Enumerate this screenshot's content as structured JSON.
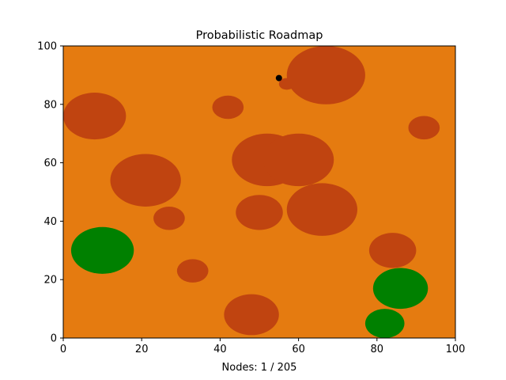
{
  "chart_data": {
    "type": "scatter",
    "title": "Probabilistic Roadmap",
    "xlabel": "Nodes: 1 / 205",
    "ylabel": "",
    "xlim": [
      0,
      100
    ],
    "ylim": [
      0,
      100
    ],
    "xticks": [
      "0",
      "20",
      "40",
      "60",
      "80",
      "100"
    ],
    "yticks": [
      "0",
      "20",
      "40",
      "60",
      "80",
      "100"
    ],
    "grid": false,
    "colors": {
      "background": "#e57b10",
      "obstacle": "#c04410",
      "goal_region": "#008000",
      "node": "#000000"
    },
    "obstacles": [
      {
        "x": 8,
        "y": 76,
        "rx": 8,
        "ry": 8
      },
      {
        "x": 21,
        "y": 54,
        "rx": 9,
        "ry": 9
      },
      {
        "x": 27,
        "y": 41,
        "rx": 4,
        "ry": 4
      },
      {
        "x": 33,
        "y": 23,
        "rx": 4,
        "ry": 4
      },
      {
        "x": 42,
        "y": 79,
        "rx": 4,
        "ry": 4
      },
      {
        "x": 48,
        "y": 8,
        "rx": 7,
        "ry": 7
      },
      {
        "x": 50,
        "y": 43,
        "rx": 6,
        "ry": 6
      },
      {
        "x": 52,
        "y": 61,
        "rx": 9,
        "ry": 9
      },
      {
        "x": 60,
        "y": 61,
        "rx": 9,
        "ry": 9
      },
      {
        "x": 57,
        "y": 87,
        "rx": 2,
        "ry": 2
      },
      {
        "x": 67,
        "y": 90,
        "rx": 10,
        "ry": 10
      },
      {
        "x": 66,
        "y": 44,
        "rx": 9,
        "ry": 9
      },
      {
        "x": 84,
        "y": 30,
        "rx": 6,
        "ry": 6
      },
      {
        "x": 92,
        "y": 72,
        "rx": 4,
        "ry": 4
      }
    ],
    "goal_regions": [
      {
        "x": 10,
        "y": 30,
        "rx": 8,
        "ry": 8
      },
      {
        "x": 86,
        "y": 17,
        "rx": 7,
        "ry": 7
      },
      {
        "x": 82,
        "y": 5,
        "rx": 5,
        "ry": 5
      }
    ],
    "nodes": [
      {
        "x": 55,
        "y": 89
      }
    ]
  }
}
